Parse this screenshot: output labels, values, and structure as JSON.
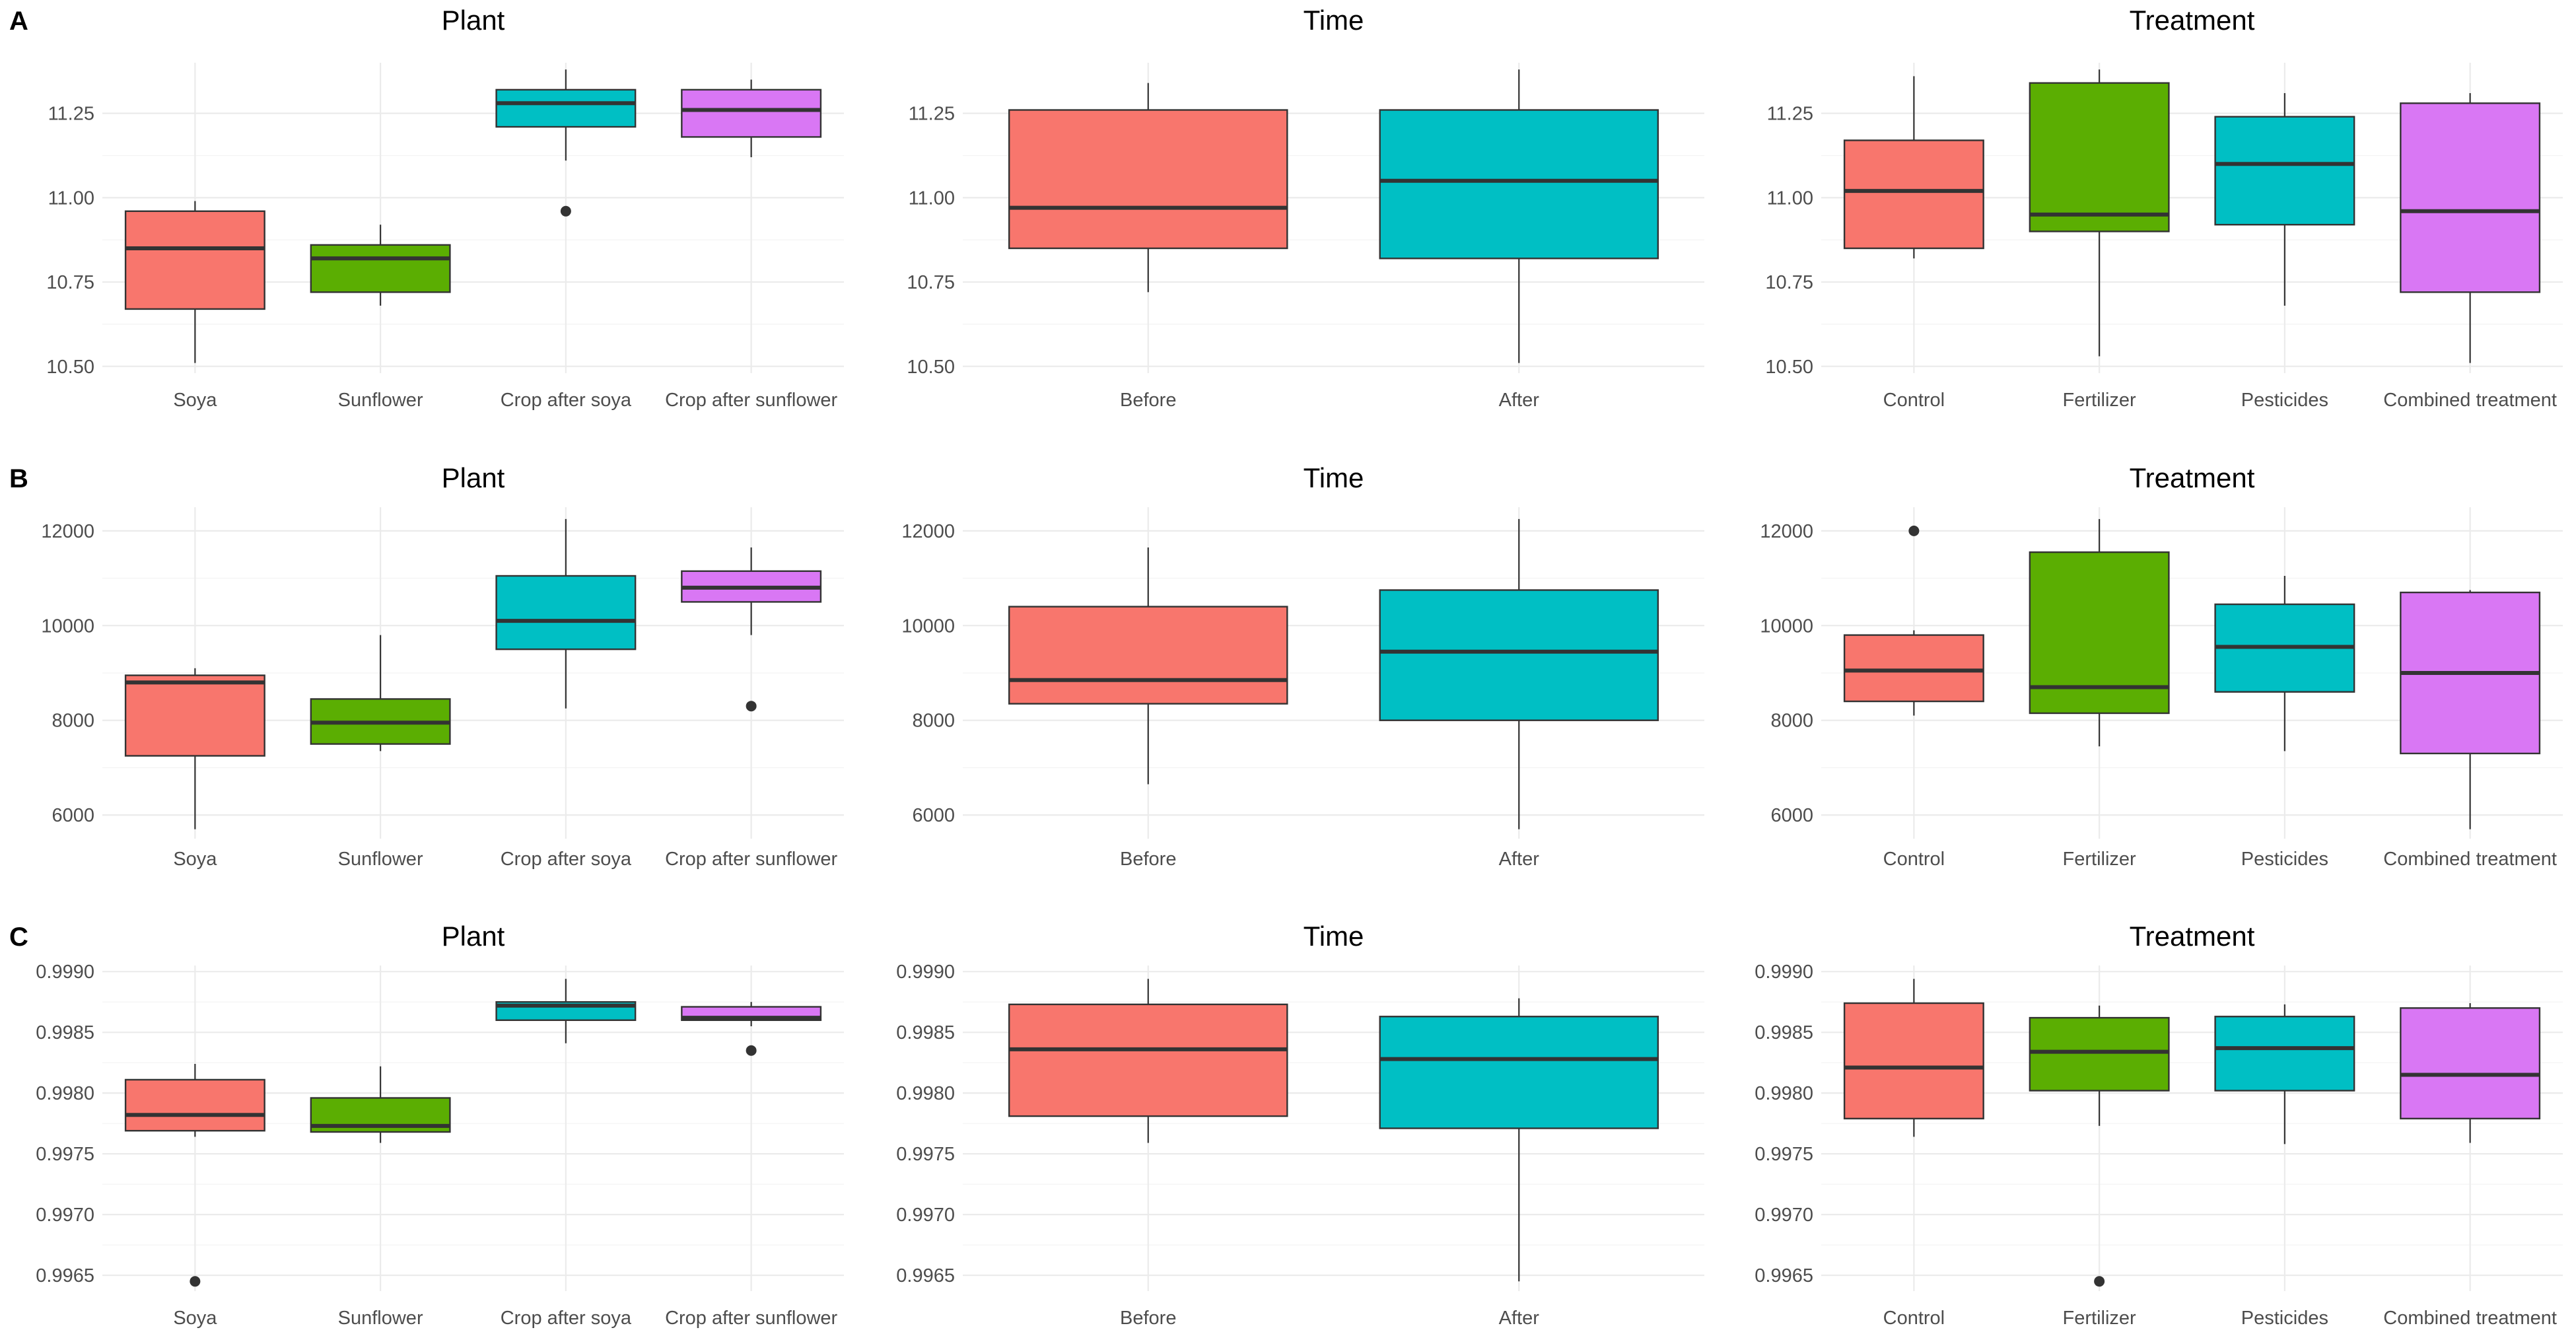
{
  "colors": {
    "Soya": "#F8766D",
    "Sunflower": "#5BAE02",
    "Crop after soya": "#00BFC4",
    "Crop after sunflower": "#D977F4",
    "Before": "#F8766D",
    "After": "#00BFC4",
    "Control": "#F8766D",
    "Fertilizer": "#5BAE02",
    "Pesticides": "#00BFC4",
    "Combined treatment": "#D977F4"
  },
  "chart_data": [
    {
      "type": "box",
      "row": "A",
      "title": "Plant",
      "ylim": [
        10.48,
        11.4
      ],
      "yticks": [
        10.5,
        10.75,
        11.0,
        11.25
      ],
      "ytick_labels": [
        "10.50",
        "10.75",
        "11.00",
        "11.25"
      ],
      "categories": [
        "Soya",
        "Sunflower",
        "Crop after soya",
        "Crop after sunflower"
      ],
      "boxes": [
        {
          "min": 10.51,
          "q1": 10.67,
          "median": 10.85,
          "q3": 10.96,
          "max": 10.99,
          "outliers": []
        },
        {
          "min": 10.68,
          "q1": 10.72,
          "median": 10.82,
          "q3": 10.86,
          "max": 10.92,
          "outliers": []
        },
        {
          "min": 11.11,
          "q1": 11.21,
          "median": 11.28,
          "q3": 11.32,
          "max": 11.38,
          "outliers": [
            10.96
          ]
        },
        {
          "min": 11.12,
          "q1": 11.18,
          "median": 11.26,
          "q3": 11.32,
          "max": 11.35,
          "outliers": []
        }
      ]
    },
    {
      "type": "box",
      "row": "",
      "title": "Time",
      "ylim": [
        10.48,
        11.4
      ],
      "yticks": [
        10.5,
        10.75,
        11.0,
        11.25
      ],
      "ytick_labels": [
        "10.50",
        "10.75",
        "11.00",
        "11.25"
      ],
      "categories": [
        "Before",
        "After"
      ],
      "boxes": [
        {
          "min": 10.72,
          "q1": 10.85,
          "median": 10.97,
          "q3": 11.26,
          "max": 11.34,
          "outliers": []
        },
        {
          "min": 10.51,
          "q1": 10.82,
          "median": 11.05,
          "q3": 11.26,
          "max": 11.38,
          "outliers": []
        }
      ]
    },
    {
      "type": "box",
      "row": "",
      "title": "Treatment",
      "ylim": [
        10.48,
        11.4
      ],
      "yticks": [
        10.5,
        10.75,
        11.0,
        11.25
      ],
      "ytick_labels": [
        "10.50",
        "10.75",
        "11.00",
        "11.25"
      ],
      "categories": [
        "Control",
        "Fertilizer",
        "Pesticides",
        "Combined treatment"
      ],
      "boxes": [
        {
          "min": 10.82,
          "q1": 10.85,
          "median": 11.02,
          "q3": 11.17,
          "max": 11.36,
          "outliers": []
        },
        {
          "min": 10.53,
          "q1": 10.9,
          "median": 10.95,
          "q3": 11.34,
          "max": 11.38,
          "outliers": []
        },
        {
          "min": 10.68,
          "q1": 10.92,
          "median": 11.1,
          "q3": 11.24,
          "max": 11.31,
          "outliers": []
        },
        {
          "min": 10.51,
          "q1": 10.72,
          "median": 10.96,
          "q3": 11.28,
          "max": 11.31,
          "outliers": []
        }
      ]
    },
    {
      "type": "box",
      "row": "B",
      "title": "Plant",
      "ylim": [
        5500,
        12500
      ],
      "yticks": [
        6000,
        8000,
        10000,
        12000
      ],
      "ytick_labels": [
        "6000",
        "8000",
        "10000",
        "12000"
      ],
      "categories": [
        "Soya",
        "Sunflower",
        "Crop after soya",
        "Crop after sunflower"
      ],
      "boxes": [
        {
          "min": 5700,
          "q1": 7250,
          "median": 8800,
          "q3": 8950,
          "max": 9100,
          "outliers": []
        },
        {
          "min": 7350,
          "q1": 7500,
          "median": 7950,
          "q3": 8450,
          "max": 9800,
          "outliers": []
        },
        {
          "min": 8250,
          "q1": 9500,
          "median": 10100,
          "q3": 11050,
          "max": 12250,
          "outliers": []
        },
        {
          "min": 9800,
          "q1": 10500,
          "median": 10800,
          "q3": 11150,
          "max": 11650,
          "outliers": [
            8300
          ]
        }
      ]
    },
    {
      "type": "box",
      "row": "",
      "title": "Time",
      "ylim": [
        5500,
        12500
      ],
      "yticks": [
        6000,
        8000,
        10000,
        12000
      ],
      "ytick_labels": [
        "6000",
        "8000",
        "10000",
        "12000"
      ],
      "categories": [
        "Before",
        "After"
      ],
      "boxes": [
        {
          "min": 6650,
          "q1": 8350,
          "median": 8850,
          "q3": 10400,
          "max": 11650,
          "outliers": []
        },
        {
          "min": 5700,
          "q1": 8000,
          "median": 9450,
          "q3": 10750,
          "max": 12250,
          "outliers": []
        }
      ]
    },
    {
      "type": "box",
      "row": "",
      "title": "Treatment",
      "ylim": [
        5500,
        12500
      ],
      "yticks": [
        6000,
        8000,
        10000,
        12000
      ],
      "ytick_labels": [
        "6000",
        "8000",
        "10000",
        "12000"
      ],
      "categories": [
        "Control",
        "Fertilizer",
        "Pesticides",
        "Combined treatment"
      ],
      "boxes": [
        {
          "min": 8100,
          "q1": 8400,
          "median": 9050,
          "q3": 9800,
          "max": 9900,
          "outliers": [
            12000
          ]
        },
        {
          "min": 7450,
          "q1": 8150,
          "median": 8700,
          "q3": 11550,
          "max": 12250,
          "outliers": []
        },
        {
          "min": 7350,
          "q1": 8600,
          "median": 9550,
          "q3": 10450,
          "max": 11050,
          "outliers": []
        },
        {
          "min": 5700,
          "q1": 7300,
          "median": 9000,
          "q3": 10700,
          "max": 10750,
          "outliers": []
        }
      ]
    },
    {
      "type": "box",
      "row": "C",
      "title": "Plant",
      "ylim": [
        0.99637,
        0.99905
      ],
      "yticks": [
        0.9965,
        0.997,
        0.9975,
        0.998,
        0.9985,
        0.999
      ],
      "ytick_labels": [
        "0.9965",
        "0.9970",
        "0.9975",
        "0.9980",
        "0.9985",
        "0.9990"
      ],
      "categories": [
        "Soya",
        "Sunflower",
        "Crop after soya",
        "Crop after sunflower"
      ],
      "boxes": [
        {
          "min": 0.99764,
          "q1": 0.99769,
          "median": 0.99782,
          "q3": 0.99811,
          "max": 0.99824,
          "outliers": [
            0.99645
          ]
        },
        {
          "min": 0.99759,
          "q1": 0.99768,
          "median": 0.99773,
          "q3": 0.99796,
          "max": 0.99822,
          "outliers": []
        },
        {
          "min": 0.99841,
          "q1": 0.9986,
          "median": 0.99872,
          "q3": 0.99875,
          "max": 0.99894,
          "outliers": []
        },
        {
          "min": 0.99855,
          "q1": 0.9986,
          "median": 0.99862,
          "q3": 0.99871,
          "max": 0.99875,
          "outliers": [
            0.99835
          ]
        }
      ]
    },
    {
      "type": "box",
      "row": "",
      "title": "Time",
      "ylim": [
        0.99637,
        0.99905
      ],
      "yticks": [
        0.9965,
        0.997,
        0.9975,
        0.998,
        0.9985,
        0.999
      ],
      "ytick_labels": [
        "0.9965",
        "0.9970",
        "0.9975",
        "0.9980",
        "0.9985",
        "0.9990"
      ],
      "categories": [
        "Before",
        "After"
      ],
      "boxes": [
        {
          "min": 0.99759,
          "q1": 0.99781,
          "median": 0.99836,
          "q3": 0.99873,
          "max": 0.99894,
          "outliers": []
        },
        {
          "min": 0.99645,
          "q1": 0.99771,
          "median": 0.99828,
          "q3": 0.99863,
          "max": 0.99878,
          "outliers": []
        }
      ]
    },
    {
      "type": "box",
      "row": "",
      "title": "Treatment",
      "ylim": [
        0.99637,
        0.99905
      ],
      "yticks": [
        0.9965,
        0.997,
        0.9975,
        0.998,
        0.9985,
        0.999
      ],
      "ytick_labels": [
        "0.9965",
        "0.9970",
        "0.9975",
        "0.9980",
        "0.9985",
        "0.9990"
      ],
      "categories": [
        "Control",
        "Fertilizer",
        "Pesticides",
        "Combined treatment"
      ],
      "boxes": [
        {
          "min": 0.99764,
          "q1": 0.99779,
          "median": 0.99821,
          "q3": 0.99874,
          "max": 0.99894,
          "outliers": []
        },
        {
          "min": 0.99773,
          "q1": 0.99802,
          "median": 0.99834,
          "q3": 0.99862,
          "max": 0.99872,
          "outliers": [
            0.99645
          ]
        },
        {
          "min": 0.99758,
          "q1": 0.99802,
          "median": 0.99837,
          "q3": 0.99863,
          "max": 0.99873,
          "outliers": []
        },
        {
          "min": 0.99759,
          "q1": 0.99779,
          "median": 0.99815,
          "q3": 0.9987,
          "max": 0.99874,
          "outliers": []
        }
      ]
    }
  ]
}
